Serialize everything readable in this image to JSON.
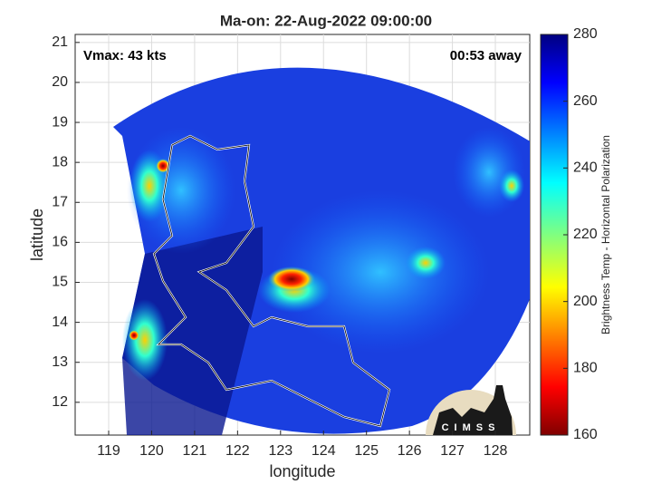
{
  "chart_data": {
    "type": "image",
    "title": "Ma-on: 22-Aug-2022 09:00:00",
    "xlabel": "longitude",
    "ylabel": "latitude",
    "xlim": [
      118.22,
      128.8
    ],
    "xticks": [
      119,
      120,
      121,
      122,
      123,
      124,
      125,
      126,
      127,
      128
    ],
    "ylim": [
      11.18,
      21.2
    ],
    "yticks": [
      12,
      13,
      14,
      15,
      16,
      17,
      18,
      19,
      20,
      21
    ],
    "grid": true,
    "annotations": [
      "Vmax: 43 kts",
      "00:53 away"
    ],
    "colorbar": {
      "label": "Brightness Temp - Horizontal Polarization",
      "clim": [
        160,
        280
      ],
      "ticks": [
        160,
        180,
        200,
        220,
        240,
        260,
        280
      ]
    },
    "logo_text": "CIMSS"
  }
}
